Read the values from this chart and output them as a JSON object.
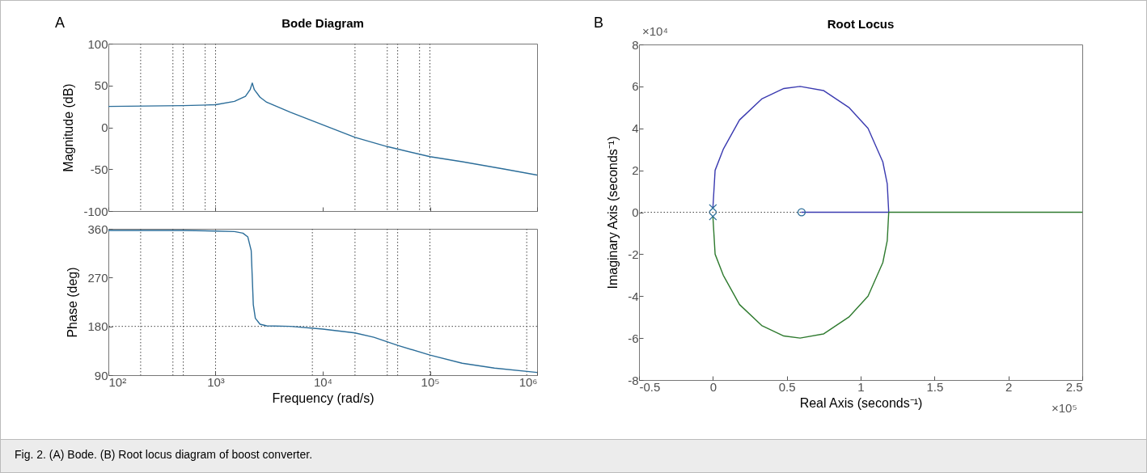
{
  "chart_data": [
    {
      "type": "line",
      "title": "Bode Diagram",
      "ylabel": "Magnitude (dB)",
      "log": "x",
      "grid": false,
      "tick_labels": "y",
      "marker": "none",
      "line_style": "solid",
      "xlim": [
        100,
        1000000
      ],
      "xticks": [
        {
          "value": 100,
          "label": null
        },
        {
          "value": 1000,
          "label": null
        },
        {
          "value": 10000,
          "label": null
        },
        {
          "value": 100000,
          "label": null
        },
        {
          "value": 1000000,
          "label": null
        }
      ],
      "ylim": [
        -100,
        100
      ],
      "yticks": [
        -100,
        -50,
        0,
        50,
        100
      ],
      "annotations": [
        "A",
        "Fig. 2.  (A) Bode. (B) Root locus diagram of boost converter."
      ],
      "ref_lines": [
        {
          "axis": "x",
          "value": 200,
          "line_style": "dotted",
          "color": "#444444"
        },
        {
          "axis": "x",
          "value": 400,
          "line_style": "dotted",
          "color": "#444444"
        },
        {
          "axis": "x",
          "value": 500,
          "line_style": "dotted",
          "color": "#444444"
        },
        {
          "axis": "x",
          "value": 800,
          "line_style": "dotted",
          "color": "#444444"
        },
        {
          "axis": "x",
          "value": 1000,
          "line_style": "dotted",
          "color": "#444444"
        },
        {
          "axis": "x",
          "value": 20000,
          "line_style": "dotted",
          "color": "#444444"
        },
        {
          "axis": "x",
          "value": 40000,
          "line_style": "dotted",
          "color": "#444444"
        },
        {
          "axis": "x",
          "value": 50000,
          "line_style": "dotted",
          "color": "#444444"
        },
        {
          "axis": "x",
          "value": 80000,
          "line_style": "dotted",
          "color": "#444444"
        },
        {
          "axis": "x",
          "value": 100000,
          "line_style": "dotted",
          "color": "#444444"
        }
      ],
      "series": [
        {
          "color": "#2b6d99",
          "x": [
            100,
            500,
            1000,
            1500,
            1900,
            2100,
            2200,
            2300,
            2600,
            3000,
            5000,
            10000,
            20000,
            40000,
            100000,
            200000,
            500000,
            1000000
          ],
          "values": [
            25,
            26,
            27,
            31,
            37,
            45,
            53,
            45,
            36,
            30,
            18,
            3,
            -12,
            -23,
            -35,
            -41,
            -50,
            -57
          ]
        }
      ]
    },
    {
      "type": "line",
      "xlabel": "Frequency  (rad/s)",
      "ylabel": "Phase (deg)",
      "log": "x",
      "grid": false,
      "marker": "none",
      "line_style": "solid",
      "xlim": [
        100,
        1000000
      ],
      "xticks": [
        {
          "value": 100,
          "label": "10²"
        },
        {
          "value": 1000,
          "label": "10³"
        },
        {
          "value": 10000,
          "label": "10⁴"
        },
        {
          "value": 100000,
          "label": "10⁵"
        },
        {
          "value": 1000000,
          "label": "10⁶"
        }
      ],
      "ylim": [
        90,
        360
      ],
      "yticks": [
        90,
        180,
        270,
        360
      ],
      "ref_lines": [
        {
          "axis": "x",
          "value": 200,
          "line_style": "dotted",
          "color": "#444444"
        },
        {
          "axis": "x",
          "value": 400,
          "line_style": "dotted",
          "color": "#444444"
        },
        {
          "axis": "x",
          "value": 500,
          "line_style": "dotted",
          "color": "#444444"
        },
        {
          "axis": "x",
          "value": 1000,
          "line_style": "dotted",
          "color": "#444444"
        },
        {
          "axis": "x",
          "value": 8000,
          "line_style": "dotted",
          "color": "#444444"
        },
        {
          "axis": "x",
          "value": 20000,
          "line_style": "dotted",
          "color": "#444444"
        },
        {
          "axis": "x",
          "value": 40000,
          "line_style": "dotted",
          "color": "#444444"
        },
        {
          "axis": "x",
          "value": 50000,
          "line_style": "dotted",
          "color": "#444444"
        },
        {
          "axis": "x",
          "value": 100000,
          "line_style": "dotted",
          "color": "#444444"
        },
        {
          "axis": "x",
          "value": 800000,
          "line_style": "dotted",
          "color": "#444444"
        },
        {
          "axis": "y",
          "value": 180,
          "line_style": "dotted",
          "color": "#444444"
        }
      ],
      "series": [
        {
          "color": "#2b6d99",
          "x": [
            100,
            500,
            1000,
            1500,
            1800,
            2000,
            2150,
            2200,
            2250,
            2350,
            2600,
            3000,
            5000,
            10000,
            20000,
            30000,
            50000,
            100000,
            200000,
            400000,
            1000000
          ],
          "values": [
            357,
            357,
            356,
            355,
            352,
            345,
            320,
            270,
            220,
            195,
            184,
            181,
            180,
            175,
            168,
            160,
            145,
            127,
            112,
            103,
            95
          ]
        }
      ]
    },
    {
      "type": "line",
      "title": "Root Locus",
      "xlabel": "Real Axis (seconds⁻¹)",
      "ylabel": "Imaginary Axis (seconds⁻¹)",
      "grid": false,
      "line_style": "solid",
      "xlim": [
        -0.5,
        2.5
      ],
      "xticks": [
        -0.5,
        0,
        0.5,
        1,
        1.5,
        2,
        2.5
      ],
      "ylim": [
        -8,
        8
      ],
      "yticks": [
        -8,
        -6,
        -4,
        -2,
        0,
        2,
        4,
        6,
        8
      ],
      "annotations": [
        "B",
        "×10⁴",
        "×10⁵"
      ],
      "ref_lines": [
        {
          "axis": "y",
          "value": 0,
          "line_style": "dotted",
          "color": "#444444"
        }
      ],
      "series": [
        {
          "color": "#3a3ab0",
          "x": [
            0,
            0.015,
            0.07,
            0.18,
            0.33,
            0.48,
            0.59,
            0.75,
            0.92,
            1.05,
            1.15,
            1.18,
            1.19
          ],
          "values": [
            0.2,
            2,
            3,
            4.4,
            5.4,
            5.9,
            6,
            5.8,
            5,
            4,
            2.4,
            1.35,
            0
          ]
        },
        {
          "color": "#2e7a2e",
          "x": [
            0,
            0.015,
            0.07,
            0.18,
            0.33,
            0.48,
            0.59,
            0.75,
            0.92,
            1.05,
            1.15,
            1.18,
            1.19
          ],
          "values": [
            -0.2,
            -2,
            -3,
            -4.4,
            -5.4,
            -5.9,
            -6,
            -5.8,
            -5,
            -4,
            -2.4,
            -1.35,
            0
          ]
        },
        {
          "color": "#3a3ab0",
          "x": [
            1.19,
            0.6
          ],
          "values": [
            0,
            0
          ]
        },
        {
          "color": "#2e7a2e",
          "x": [
            1.19,
            2.5
          ],
          "values": [
            0,
            0
          ]
        },
        {
          "type": "scatter",
          "marker": "cross",
          "color": "#2b6d99",
          "x": [
            0,
            0
          ],
          "values": [
            0.2,
            -0.2
          ]
        },
        {
          "type": "scatter",
          "marker": "circle",
          "color": "#2b6d99",
          "x": [
            0.6
          ],
          "values": [
            0
          ]
        }
      ]
    }
  ]
}
